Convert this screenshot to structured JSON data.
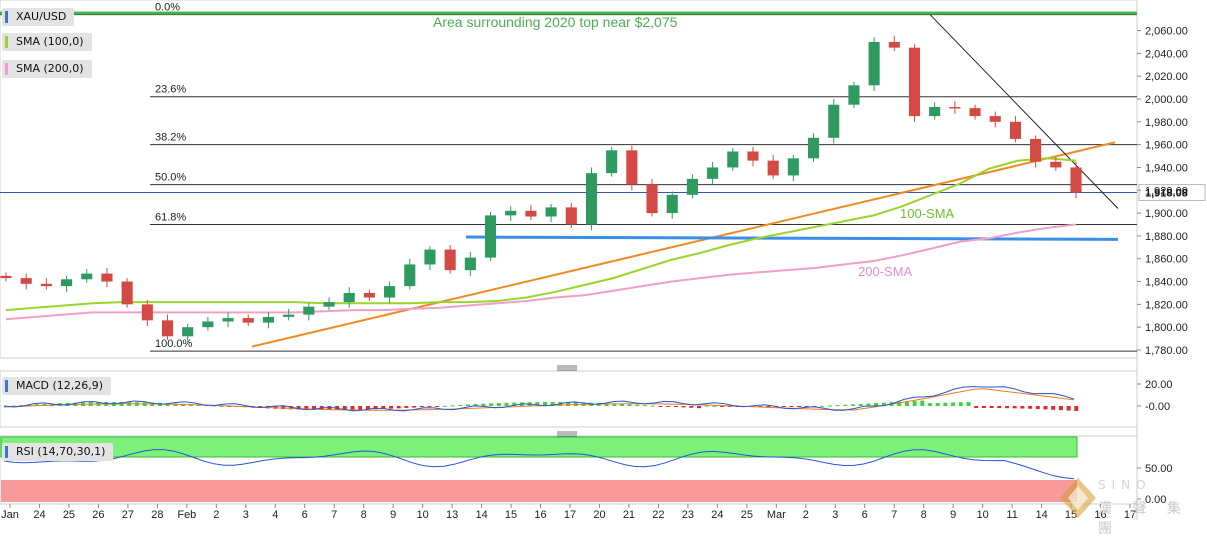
{
  "chart_data": [
    {
      "type": "candlestick",
      "symbol": "XAU/USD",
      "last_price": "1,918.08",
      "y_ticks": [
        "2,060.00",
        "2,040.00",
        "2,020.00",
        "2,000.00",
        "1,980.00",
        "1,960.00",
        "1,940.00",
        "1,920.00",
        "1,900.00",
        "1,880.00",
        "1,860.00",
        "1,840.00",
        "1,820.00",
        "1,800.00",
        "1,780.00"
      ],
      "ylim": [
        1773,
        2078
      ],
      "x_ticks": [
        "Jan",
        "24",
        "25",
        "26",
        "27",
        "28",
        "Feb",
        "2",
        "3",
        "4",
        "6",
        "7",
        "8",
        "9",
        "10",
        "13",
        "14",
        "15",
        "16",
        "17",
        "20",
        "21",
        "22",
        "23",
        "24",
        "25",
        "Mar",
        "2",
        "3",
        "6",
        "7",
        "8",
        "9",
        "10",
        "11",
        "14",
        "15",
        "16",
        "17"
      ],
      "fibonacci": [
        {
          "label": "0.0%",
          "price": 2074
        },
        {
          "label": "23.6%",
          "price": 2002
        },
        {
          "label": "38.2%",
          "price": 1960
        },
        {
          "label": "50.0%",
          "price": 1925
        },
        {
          "label": "61.8%",
          "price": 1890
        },
        {
          "label": "100.0%",
          "price": 1779
        }
      ],
      "annotations": [
        {
          "text": "Area surrounding 2020 top near $2,075",
          "color": "#4caf50"
        },
        {
          "text": "100-SMA",
          "color": "#6fbf2a"
        },
        {
          "text": "200-SMA",
          "color": "#e28fd0"
        }
      ],
      "indicators": [
        {
          "name": "SMA (100,0)",
          "color": "#9bd42c"
        },
        {
          "name": "SMA (200,0)",
          "color": "#f0a0c8"
        }
      ],
      "sma100": [
        1815,
        1817,
        1819,
        1821,
        1822,
        1822,
        1822,
        1822,
        1822,
        1822,
        1822,
        1821,
        1821,
        1821,
        1821,
        1822,
        1822,
        1823,
        1826,
        1831,
        1837,
        1843,
        1851,
        1859,
        1865,
        1872,
        1878,
        1883,
        1888,
        1893,
        1898,
        1906,
        1916,
        1926,
        1939,
        1946,
        1948,
        1946
      ],
      "sma200": [
        1807,
        1809,
        1811,
        1813,
        1813,
        1813,
        1813,
        1813,
        1813,
        1813,
        1813,
        1814,
        1815,
        1815,
        1816,
        1817,
        1819,
        1821,
        1823,
        1826,
        1828,
        1832,
        1836,
        1840,
        1843,
        1846,
        1848,
        1850,
        1852,
        1855,
        1858,
        1863,
        1869,
        1875,
        1878,
        1883,
        1887,
        1890
      ],
      "close": [
        1843,
        1838,
        1836,
        1842,
        1847,
        1840,
        1820,
        1806,
        1792,
        1800,
        1805,
        1808,
        1804,
        1809,
        1811,
        1818,
        1822,
        1830,
        1826,
        1836,
        1855,
        1868,
        1850,
        1861,
        1898,
        1902,
        1897,
        1905,
        1890,
        1935,
        1955,
        1925,
        1900,
        1916,
        1930,
        1940,
        1954,
        1946,
        1933,
        1948,
        1966,
        1995,
        2012,
        2050,
        2045,
        1985,
        1993,
        1992,
        1985,
        1980,
        1965,
        1945,
        1940,
        1918
      ],
      "macd_label": "MACD (12,26,9)",
      "macd_ticks": [
        "20.00",
        "-0.00"
      ],
      "rsi_label": "RSI (14,70,30,1)",
      "rsi_ticks": [
        "50.00",
        "0.00"
      ]
    }
  ],
  "watermark": {
    "cn_text": "漢 聲 集 團",
    "sub_text": "SINO"
  }
}
